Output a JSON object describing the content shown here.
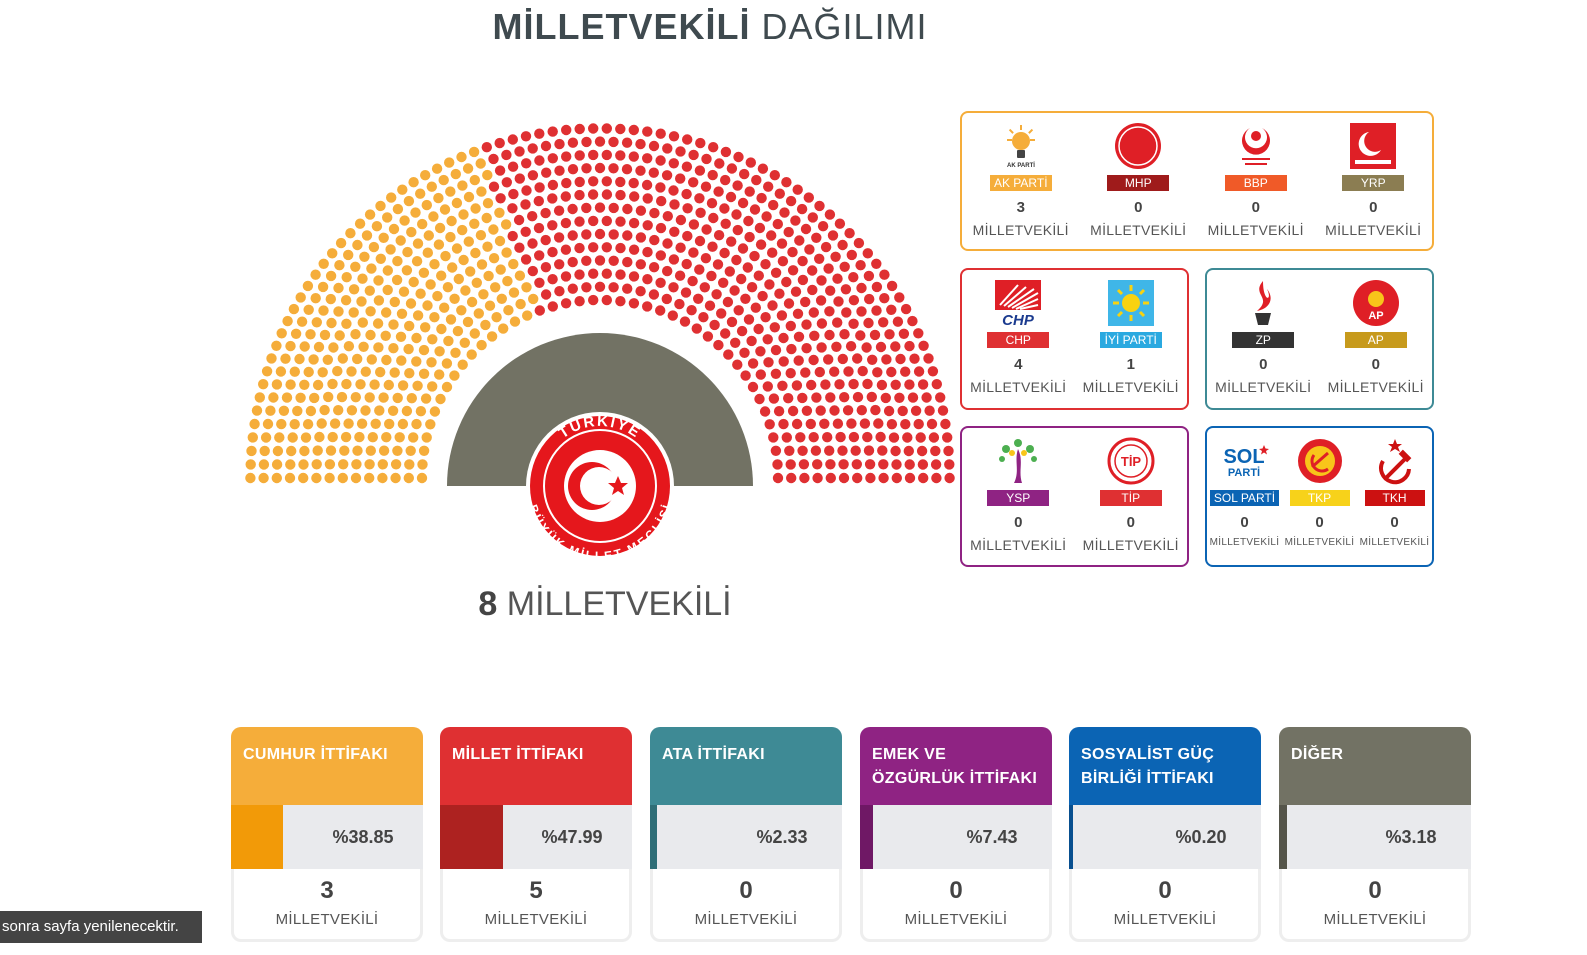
{
  "title": {
    "bold": "MİLLETVEKİLİ",
    "light": "DAĞILIMI"
  },
  "total": {
    "count": "8",
    "label": "MİLLETVEKİLİ"
  },
  "seal": {
    "top_text": "TÜRKİYE",
    "bottom_text": "BÜYÜK MİLLET MECLİSİ"
  },
  "colors": {
    "cumhur": "#f5ad3a",
    "millet": "#df3032",
    "ata": "#3e8a95",
    "emek": "#8f2383",
    "sosyalist": "#0b64b4",
    "diger": "#727264"
  },
  "hemicycle": {
    "left_share": 0.3885,
    "left_color": "#f5ad3a",
    "right_color": "#df3032",
    "inner_color": "#727264"
  },
  "groups": [
    {
      "name": "cumhur",
      "border": "#f5ad3a",
      "parties": [
        {
          "name": "AK PARTİ",
          "color": "#f5ad3a",
          "seats": "3",
          "label": "MİLLETVEKİLİ",
          "icon": "bulb-icon"
        },
        {
          "name": "MHP",
          "color": "#9f1b1b",
          "seats": "0",
          "label": "MİLLETVEKİLİ",
          "icon": "crescents-icon"
        },
        {
          "name": "BBP",
          "color": "#f05a28",
          "seats": "0",
          "label": "MİLLETVEKİLİ",
          "icon": "bbp-icon"
        },
        {
          "name": "YRP",
          "color": "#8b7d52",
          "seats": "0",
          "label": "MİLLETVEKİLİ",
          "icon": "yrp-icon"
        }
      ]
    },
    {
      "name": "millet",
      "border": "#df3032",
      "parties": [
        {
          "name": "CHP",
          "color": "#df3032",
          "seats": "4",
          "label": "MİLLETVEKİLİ",
          "icon": "arrows-icon"
        },
        {
          "name": "İYİ PARTİ",
          "color": "#2aa9e0",
          "seats": "1",
          "label": "MİLLETVEKİLİ",
          "icon": "sun-icon"
        }
      ]
    },
    {
      "name": "ata",
      "border": "#3e8a95",
      "parties": [
        {
          "name": "ZP",
          "color": "#333333",
          "seats": "0",
          "label": "MİLLETVEKİLİ",
          "icon": "flame-icon"
        },
        {
          "name": "AP",
          "color": "#c79a1c",
          "seats": "0",
          "label": "MİLLETVEKİLİ",
          "icon": "ap-icon"
        }
      ]
    },
    {
      "name": "emek",
      "border": "#8f2383",
      "parties": [
        {
          "name": "YSP",
          "color": "#8f2383",
          "seats": "0",
          "label": "MİLLETVEKİLİ",
          "icon": "tree-icon"
        },
        {
          "name": "TİP",
          "color": "#df3032",
          "seats": "0",
          "label": "MİLLETVEKİLİ",
          "icon": "tip-icon"
        }
      ]
    },
    {
      "name": "sosyalist",
      "border": "#0b64b4",
      "parties": [
        {
          "name": "SOL PARTİ",
          "color": "#0b64b4",
          "seats": "0",
          "label": "MİLLETVEKİLİ",
          "icon": "sol-icon"
        },
        {
          "name": "TKP",
          "color": "#f7d21a",
          "seats": "0",
          "label": "MİLLETVEKİLİ",
          "icon": "tkp-icon"
        },
        {
          "name": "TKH",
          "color": "#cc1111",
          "seats": "0",
          "label": "MİLLETVEKİLİ",
          "icon": "hammer-sickle-icon"
        }
      ]
    }
  ],
  "alliances": [
    {
      "name": "CUMHUR İTTİFAKI",
      "head": "#f5ad3a",
      "fill": "#f29a08",
      "share": 0.3885,
      "pct": "%38.85",
      "seats": "3",
      "label": "MİLLETVEKİLİ"
    },
    {
      "name": "MİLLET İTTİFAKI",
      "head": "#df3032",
      "fill": "#ad2220",
      "share": 0.4799,
      "pct": "%47.99",
      "seats": "5",
      "label": "MİLLETVEKİLİ"
    },
    {
      "name": "ATA İTTİFAKI",
      "head": "#3e8a95",
      "fill": "#2f6e77",
      "share": 0.0233,
      "pct": "%2.33",
      "seats": "0",
      "label": "MİLLETVEKİLİ"
    },
    {
      "name": "EMEK VE ÖZGÜRLÜK İTTİFAKI",
      "head": "#8f2383",
      "fill": "#6f1865",
      "share": 0.0743,
      "pct": "%7.43",
      "seats": "0",
      "label": "MİLLETVEKİLİ"
    },
    {
      "name": "SOSYALİST GÜÇ BİRLİĞİ İTTİFAKI",
      "head": "#0b64b4",
      "fill": "#084f8f",
      "share": 0.002,
      "pct": "%0.20",
      "seats": "0",
      "label": "MİLLETVEKİLİ"
    },
    {
      "name": "DİĞER",
      "head": "#727264",
      "fill": "#55554a",
      "share": 0.0318,
      "pct": "%3.18",
      "seats": "0",
      "label": "MİLLETVEKİLİ"
    }
  ],
  "toast": "sonra sayfa yenilenecektir."
}
